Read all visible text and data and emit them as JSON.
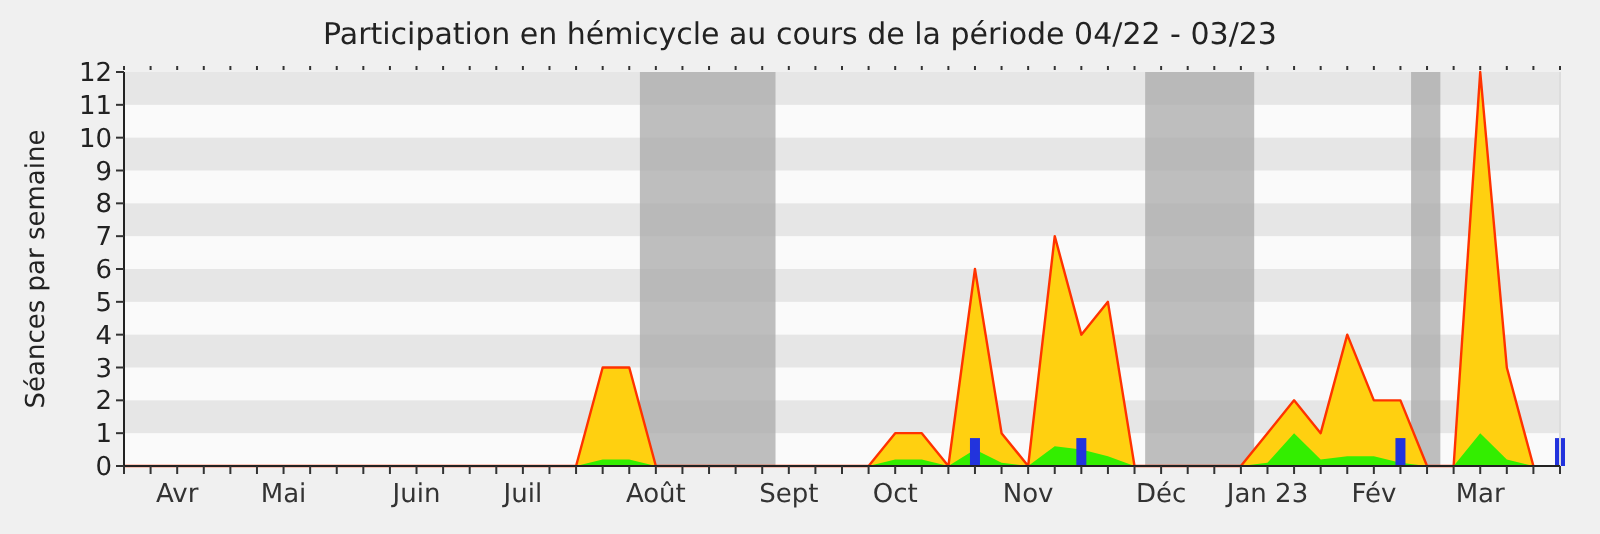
{
  "chart_data": {
    "type": "area",
    "title": "Participation en hémicycle au cours de la période 04/22 - 03/23",
    "ylabel": "Séances par semaine",
    "categories": [
      null,
      null,
      "Avr",
      null,
      null,
      null,
      "Mai",
      null,
      null,
      null,
      null,
      "Juin",
      null,
      null,
      null,
      "Juil",
      null,
      null,
      null,
      null,
      "Août",
      null,
      null,
      null,
      null,
      "Sept",
      null,
      null,
      null,
      "Oct",
      null,
      null,
      null,
      null,
      "Nov",
      null,
      null,
      null,
      null,
      "Déc",
      null,
      null,
      null,
      "Jan 23",
      null,
      null,
      null,
      "Fév",
      null,
      null,
      null,
      "Mar",
      null,
      null,
      null
    ],
    "series": [
      {
        "color": "#ffd010",
        "values": [
          0,
          0,
          0,
          0,
          0,
          0,
          0,
          0,
          0,
          0,
          0,
          0,
          0,
          0,
          0,
          0,
          0,
          0,
          3,
          3,
          0,
          0,
          0,
          0,
          0,
          0,
          0,
          0,
          0,
          1,
          1,
          0,
          6,
          1,
          0,
          7,
          4,
          5,
          0,
          0,
          0,
          0,
          0,
          1,
          2,
          1,
          4,
          2,
          2,
          0,
          0,
          12,
          3,
          0,
          null
        ]
      },
      {
        "color": "#33ee00",
        "values": [
          0,
          0,
          0,
          0,
          0,
          0,
          0,
          0,
          0,
          0,
          0,
          0,
          0,
          0,
          0,
          0,
          0,
          0,
          0.2,
          0.2,
          0,
          0,
          0,
          0,
          0,
          0,
          0,
          0,
          0,
          0.2,
          0.2,
          0,
          0.5,
          0.1,
          0,
          0.6,
          0.5,
          0.3,
          0,
          0,
          0,
          0,
          0,
          0.1,
          1,
          0.2,
          0.3,
          0.3,
          0.1,
          0,
          0,
          1,
          0.2,
          0,
          null
        ]
      },
      {
        "type": "bar",
        "color": "#2233dd",
        "values": [
          null,
          null,
          null,
          null,
          null,
          null,
          null,
          null,
          null,
          null,
          null,
          null,
          null,
          null,
          null,
          null,
          null,
          null,
          null,
          null,
          null,
          null,
          null,
          null,
          null,
          null,
          null,
          null,
          null,
          null,
          null,
          null,
          0.85,
          null,
          null,
          null,
          0.85,
          null,
          null,
          null,
          null,
          null,
          null,
          null,
          null,
          null,
          null,
          null,
          0.85,
          null,
          null,
          null,
          null,
          null,
          0.85
        ]
      }
    ],
    "ylim": [
      0,
      12
    ],
    "yticks": [
      0,
      1,
      2,
      3,
      4,
      5,
      6,
      7,
      8,
      9,
      10,
      11,
      12
    ]
  }
}
